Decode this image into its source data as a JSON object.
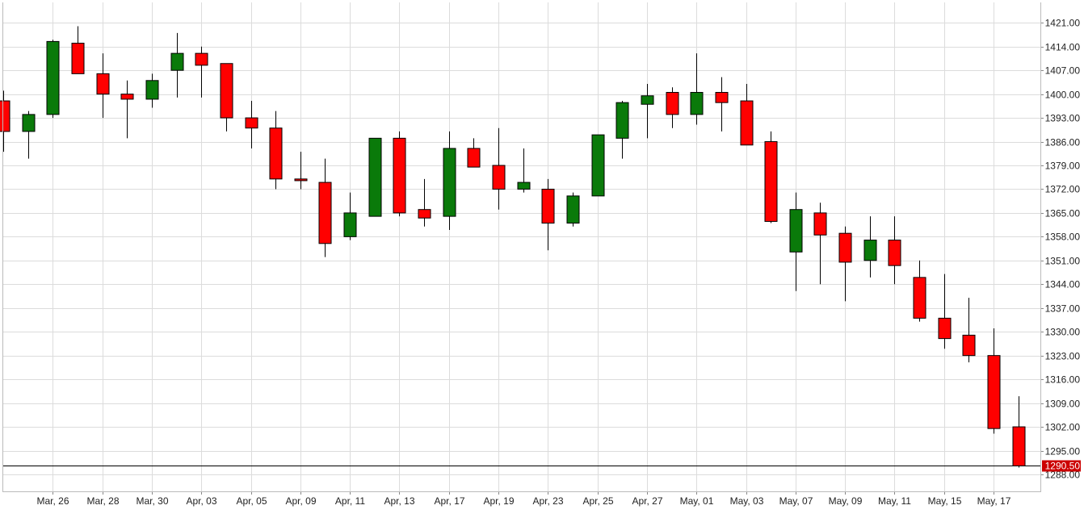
{
  "chart_data": {
    "type": "candlestick",
    "title": "",
    "xlabel": "",
    "ylabel": "",
    "grid": true,
    "ylim": [
      1283,
      1427
    ],
    "y_ticks": [
      "1421.00",
      "1414.00",
      "1407.00",
      "1400.00",
      "1393.00",
      "1386.00",
      "1379.00",
      "1372.00",
      "1365.00",
      "1358.00",
      "1351.00",
      "1344.00",
      "1337.00",
      "1330.00",
      "1323.00",
      "1316.00",
      "1309.00",
      "1302.00",
      "1295.00",
      "1288.00"
    ],
    "x_ticks": [
      "Mar, 26",
      "Mar, 28",
      "Mar, 30",
      "Apr, 03",
      "Apr, 05",
      "Apr, 09",
      "Apr, 11",
      "Apr, 13",
      "Apr, 17",
      "Apr, 19",
      "Apr, 23",
      "Apr, 25",
      "Apr, 27",
      "May, 01",
      "May, 03",
      "May, 07",
      "May, 09",
      "May, 11",
      "May, 15",
      "May, 17"
    ],
    "x_tick_bar_index": [
      2,
      4,
      6,
      8,
      10,
      12,
      14,
      16,
      18,
      20,
      22,
      24,
      26,
      28,
      30,
      32,
      34,
      36,
      38,
      40
    ],
    "last_price": "1290.50",
    "last_price_value": 1290.5,
    "up_color": "#0a7a0a",
    "down_color": "#ff0000",
    "candles": [
      {
        "o": 1398,
        "h": 1401,
        "l": 1383,
        "c": 1389
      },
      {
        "o": 1389,
        "h": 1395,
        "l": 1381,
        "c": 1394
      },
      {
        "o": 1394,
        "h": 1416,
        "l": 1393,
        "c": 1415.5
      },
      {
        "o": 1415,
        "h": 1420,
        "l": 1406,
        "c": 1406
      },
      {
        "o": 1406,
        "h": 1412,
        "l": 1393,
        "c": 1400
      },
      {
        "o": 1400,
        "h": 1404,
        "l": 1387,
        "c": 1398.5
      },
      {
        "o": 1398.5,
        "h": 1406,
        "l": 1396,
        "c": 1404
      },
      {
        "o": 1407,
        "h": 1418,
        "l": 1399,
        "c": 1412
      },
      {
        "o": 1412,
        "h": 1414,
        "l": 1399,
        "c": 1408.5
      },
      {
        "o": 1409,
        "h": 1409,
        "l": 1389,
        "c": 1393
      },
      {
        "o": 1393,
        "h": 1398,
        "l": 1384,
        "c": 1390
      },
      {
        "o": 1390,
        "h": 1395,
        "l": 1372,
        "c": 1375
      },
      {
        "o": 1375,
        "h": 1383,
        "l": 1372,
        "c": 1374.5
      },
      {
        "o": 1374,
        "h": 1381,
        "l": 1352,
        "c": 1356
      },
      {
        "o": 1358,
        "h": 1371,
        "l": 1357,
        "c": 1365
      },
      {
        "o": 1364,
        "h": 1387,
        "l": 1364,
        "c": 1387
      },
      {
        "o": 1387,
        "h": 1389,
        "l": 1364,
        "c": 1365
      },
      {
        "o": 1366,
        "h": 1375,
        "l": 1361,
        "c": 1363.5
      },
      {
        "o": 1364,
        "h": 1389,
        "l": 1360,
        "c": 1384
      },
      {
        "o": 1384,
        "h": 1387,
        "l": 1379,
        "c": 1378.5
      },
      {
        "o": 1379,
        "h": 1390,
        "l": 1366,
        "c": 1372
      },
      {
        "o": 1372,
        "h": 1384,
        "l": 1371,
        "c": 1374
      },
      {
        "o": 1372,
        "h": 1375,
        "l": 1354,
        "c": 1362
      },
      {
        "o": 1362,
        "h": 1371,
        "l": 1361,
        "c": 1370
      },
      {
        "o": 1370,
        "h": 1388,
        "l": 1370,
        "c": 1388
      },
      {
        "o": 1387,
        "h": 1398,
        "l": 1381,
        "c": 1397.5
      },
      {
        "o": 1397,
        "h": 1403,
        "l": 1387,
        "c": 1399.5
      },
      {
        "o": 1400.5,
        "h": 1402,
        "l": 1390,
        "c": 1394
      },
      {
        "o": 1394,
        "h": 1412,
        "l": 1391,
        "c": 1400.5
      },
      {
        "o": 1400.5,
        "h": 1405,
        "l": 1389,
        "c": 1397.5
      },
      {
        "o": 1398,
        "h": 1403,
        "l": 1385,
        "c": 1385
      },
      {
        "o": 1386,
        "h": 1389,
        "l": 1362,
        "c": 1362.5
      },
      {
        "o": 1353.5,
        "h": 1371,
        "l": 1342,
        "c": 1366
      },
      {
        "o": 1365,
        "h": 1368,
        "l": 1344,
        "c": 1358.5
      },
      {
        "o": 1359,
        "h": 1361,
        "l": 1339,
        "c": 1350.5
      },
      {
        "o": 1351,
        "h": 1364,
        "l": 1346,
        "c": 1357
      },
      {
        "o": 1357,
        "h": 1364,
        "l": 1344,
        "c": 1349.5
      },
      {
        "o": 1346,
        "h": 1351,
        "l": 1333,
        "c": 1334
      },
      {
        "o": 1334,
        "h": 1347,
        "l": 1325,
        "c": 1328
      },
      {
        "o": 1329,
        "h": 1340,
        "l": 1321,
        "c": 1323
      },
      {
        "o": 1323,
        "h": 1331,
        "l": 1300,
        "c": 1301.5
      },
      {
        "o": 1302,
        "h": 1311,
        "l": 1290,
        "c": 1290.5
      }
    ]
  }
}
